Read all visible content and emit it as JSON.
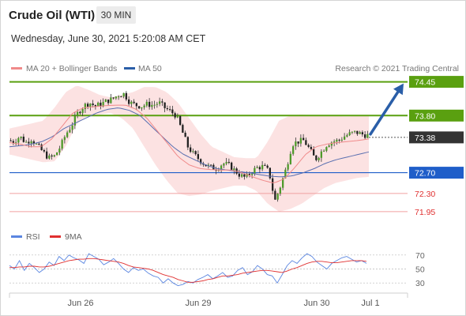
{
  "header": {
    "title": "Crude Oil (WTI)",
    "interval": "30 MIN",
    "datetime": "Wednesday, June 30, 2021 5:20:08 AM CET",
    "credit": "Research © 2021 Trading Central"
  },
  "colors": {
    "support_resistance": "#5aa010",
    "pivot": "#1f5ec9",
    "target_lines": "#f0a0a0",
    "current": "#333333",
    "bollinger": "#fbd6d6",
    "ma20": "#f08a8a",
    "ma50": "#5a6fb0",
    "arrow": "#2a5ea8",
    "rsi": "#5b86e0",
    "rsi_ma": "#e03030"
  },
  "chart_data": [
    {
      "type": "candlestick",
      "legend": [
        {
          "name": "MA 20 + Bollinger Bands",
          "color": "#f08a8a"
        },
        {
          "name": "MA 50",
          "color": "#2a5ea8"
        }
      ],
      "x_ticks": [
        "Jun 26",
        "Jun 29",
        "Jun 30",
        "Jul 1"
      ],
      "ylim": [
        71.75,
        74.55
      ],
      "levels": [
        {
          "label": "74.45",
          "value": 74.45,
          "kind": "resistance"
        },
        {
          "label": "73.80",
          "value": 73.8,
          "kind": "resistance"
        },
        {
          "label": "73.38",
          "value": 73.38,
          "kind": "current"
        },
        {
          "label": "72.70",
          "value": 72.7,
          "kind": "pivot"
        },
        {
          "label": "72.30",
          "value": 72.3,
          "kind": "support"
        },
        {
          "label": "71.95",
          "value": 71.95,
          "kind": "support"
        }
      ],
      "close_path": [
        73.32,
        73.3,
        73.4,
        73.28,
        73.35,
        73.22,
        73.1,
        72.98,
        73.02,
        73.2,
        73.45,
        73.62,
        73.85,
        73.98,
        74.05,
        73.98,
        74.02,
        74.08,
        74.12,
        74.2,
        74.22,
        74.05,
        74.0,
        73.98,
        74.02,
        74.0,
        74.05,
        73.95,
        73.88,
        73.8,
        73.5,
        73.2,
        73.05,
        72.95,
        72.85,
        72.8,
        72.78,
        72.88,
        72.85,
        72.75,
        72.65,
        72.6,
        72.72,
        72.8,
        72.82,
        72.72,
        72.15,
        72.45,
        72.8,
        73.25,
        73.3,
        73.32,
        73.15,
        72.95,
        73.1,
        73.25,
        73.3,
        73.32,
        73.4,
        73.45,
        73.48,
        73.44,
        73.42
      ],
      "ma20_path": [
        73.28,
        73.25,
        73.2,
        73.2,
        73.35,
        73.6,
        73.85,
        73.95,
        73.97,
        73.99,
        74.0,
        74.0,
        73.92,
        73.75,
        73.5,
        73.25,
        73.0,
        72.85,
        72.78,
        72.76,
        72.75,
        72.75,
        72.7,
        72.62,
        72.55,
        72.5,
        72.58,
        72.8,
        73.05,
        73.2,
        73.25,
        73.28,
        73.3,
        73.32,
        73.35
      ],
      "ma50_path": [
        73.2,
        73.22,
        73.25,
        73.3,
        73.4,
        73.55,
        73.65,
        73.75,
        73.85,
        73.92,
        73.95,
        73.9,
        73.8,
        73.6,
        73.4,
        73.2,
        73.05,
        72.95,
        72.85,
        72.78,
        72.75,
        72.72,
        72.7,
        72.66,
        72.63,
        72.62,
        72.64,
        72.7,
        72.78,
        72.88,
        72.95,
        73.0,
        73.05,
        73.1
      ],
      "bollinger_upper": [
        73.55,
        73.6,
        73.65,
        73.7,
        73.95,
        74.25,
        74.38,
        74.3,
        74.2,
        74.15,
        74.2,
        74.25,
        74.35,
        74.35,
        74.25,
        74.05,
        73.75,
        73.45,
        73.2,
        73.1,
        73.0,
        72.98,
        72.98,
        73.3,
        73.7,
        73.8,
        73.82,
        73.8,
        73.8,
        73.8,
        73.78,
        73.8,
        73.8
      ],
      "bollinger_lower": [
        73.05,
        73.0,
        72.95,
        72.9,
        72.92,
        73.2,
        73.65,
        73.8,
        73.82,
        73.85,
        73.75,
        73.55,
        73.2,
        72.85,
        72.55,
        72.3,
        72.25,
        72.28,
        72.35,
        72.4,
        72.45,
        72.45,
        72.35,
        72.1,
        71.95,
        72.0,
        72.1,
        72.25,
        72.4,
        72.5,
        72.55,
        72.6,
        72.62
      ],
      "projection": {
        "from": 73.38,
        "to": 74.45
      }
    },
    {
      "type": "line",
      "legend": [
        {
          "name": "RSI",
          "color": "#5b86e0"
        },
        {
          "name": "9MA",
          "color": "#e03030"
        }
      ],
      "y_ticks": [
        70,
        50,
        30
      ],
      "ylim": [
        20,
        80
      ],
      "series": [
        {
          "name": "RSI",
          "values": [
            55,
            50,
            62,
            48,
            58,
            52,
            45,
            50,
            60,
            55,
            68,
            62,
            70,
            66,
            63,
            58,
            72,
            68,
            64,
            56,
            60,
            65,
            58,
            50,
            45,
            52,
            48,
            50,
            44,
            40,
            38,
            30,
            36,
            30,
            26,
            28,
            32,
            30,
            35,
            38,
            42,
            36,
            40,
            45,
            38,
            40,
            48,
            52,
            42,
            46,
            55,
            50,
            42,
            40,
            30,
            42,
            55,
            62,
            58,
            66,
            72,
            68,
            60,
            55,
            50,
            58,
            62,
            66,
            68,
            64,
            60,
            62,
            58
          ]
        },
        {
          "name": "9MA",
          "values": [
            52,
            52,
            53,
            53,
            54,
            54,
            53,
            53,
            54,
            56,
            58,
            60,
            62,
            63,
            64,
            64,
            65,
            65,
            64,
            63,
            62,
            61,
            60,
            58,
            55,
            53,
            52,
            51,
            50,
            48,
            45,
            42,
            40,
            38,
            35,
            33,
            31,
            31,
            32,
            33,
            35,
            36,
            38,
            40,
            40,
            41,
            42,
            44,
            45,
            46,
            47,
            48,
            48,
            47,
            46,
            45,
            47,
            50,
            52,
            55,
            58,
            60,
            61,
            61,
            60,
            59,
            59,
            60,
            61,
            62,
            62,
            62,
            61
          ]
        }
      ]
    }
  ]
}
